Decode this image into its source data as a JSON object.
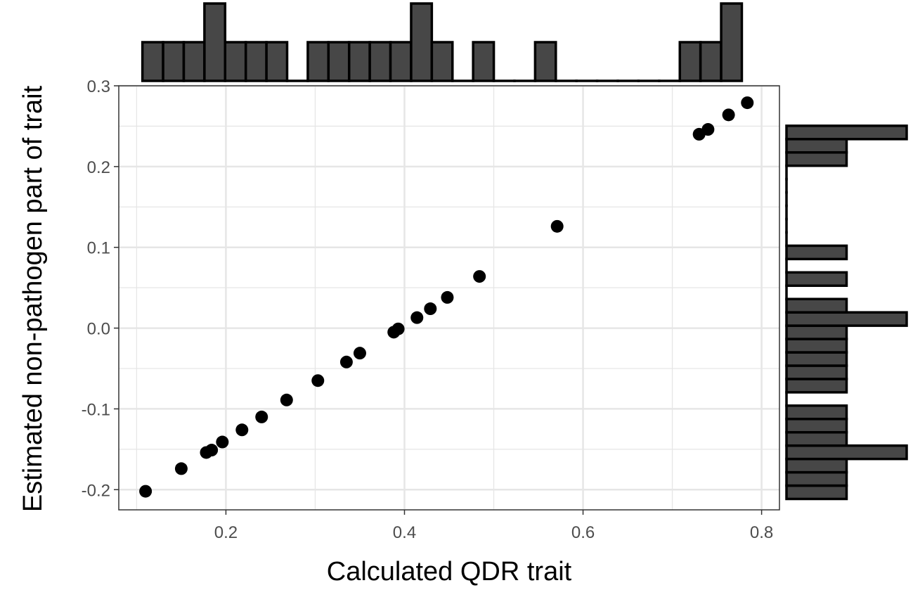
{
  "chart_data": {
    "type": "scatter",
    "xlabel": "Calculated QDR trait",
    "ylabel": "Estimated non-pathogen part of trait",
    "xlim": [
      0.08,
      0.82
    ],
    "ylim": [
      -0.225,
      0.3
    ],
    "x_ticks": [
      {
        "value": 0.2,
        "label": "0.2"
      },
      {
        "value": 0.4,
        "label": "0.4"
      },
      {
        "value": 0.6,
        "label": "0.6"
      },
      {
        "value": 0.8,
        "label": "0.8"
      }
    ],
    "y_ticks": [
      {
        "value": 0.3,
        "label": "0.3"
      },
      {
        "value": 0.2,
        "label": "0.2"
      },
      {
        "value": 0.1,
        "label": "0.1"
      },
      {
        "value": 0.0,
        "label": "0.0"
      },
      {
        "value": -0.1,
        "label": "-0.1"
      },
      {
        "value": -0.2,
        "label": "-0.2"
      }
    ],
    "grid": true,
    "points": [
      {
        "x": 0.11,
        "y": -0.202
      },
      {
        "x": 0.15,
        "y": -0.174
      },
      {
        "x": 0.178,
        "y": -0.154
      },
      {
        "x": 0.184,
        "y": -0.151
      },
      {
        "x": 0.196,
        "y": -0.141
      },
      {
        "x": 0.218,
        "y": -0.126
      },
      {
        "x": 0.24,
        "y": -0.11
      },
      {
        "x": 0.268,
        "y": -0.089
      },
      {
        "x": 0.303,
        "y": -0.065
      },
      {
        "x": 0.335,
        "y": -0.042
      },
      {
        "x": 0.35,
        "y": -0.031
      },
      {
        "x": 0.388,
        "y": -0.005
      },
      {
        "x": 0.393,
        "y": -0.001
      },
      {
        "x": 0.414,
        "y": 0.013
      },
      {
        "x": 0.429,
        "y": 0.024
      },
      {
        "x": 0.448,
        "y": 0.038
      },
      {
        "x": 0.484,
        "y": 0.064
      },
      {
        "x": 0.571,
        "y": 0.126
      },
      {
        "x": 0.73,
        "y": 0.24
      },
      {
        "x": 0.74,
        "y": 0.246
      },
      {
        "x": 0.763,
        "y": 0.264
      },
      {
        "x": 0.784,
        "y": 0.279
      }
    ],
    "marginal_x_histogram": {
      "bin_start": 0.1065,
      "bin_width": 0.02315,
      "counts": [
        1,
        1,
        1,
        2,
        1,
        1,
        1,
        0,
        1,
        1,
        1,
        1,
        1,
        2,
        1,
        0,
        1,
        0,
        0,
        1,
        0,
        0,
        0,
        0,
        0,
        0,
        1,
        1,
        2
      ]
    },
    "marginal_y_histogram": {
      "bin_start": -0.2115,
      "bin_width": 0.0165,
      "counts": [
        1,
        1,
        1,
        2,
        1,
        1,
        1,
        0,
        1,
        1,
        1,
        1,
        1,
        2,
        1,
        0,
        1,
        0,
        1,
        0,
        0,
        0,
        0,
        0,
        0,
        1,
        1,
        2
      ]
    },
    "colors": {
      "points": "#000000",
      "histogram_fill": "#474747",
      "histogram_stroke": "#000000",
      "grid": "#e6e6e6",
      "panel_border": "#333333",
      "tick_text": "#4d4d4d"
    }
  }
}
